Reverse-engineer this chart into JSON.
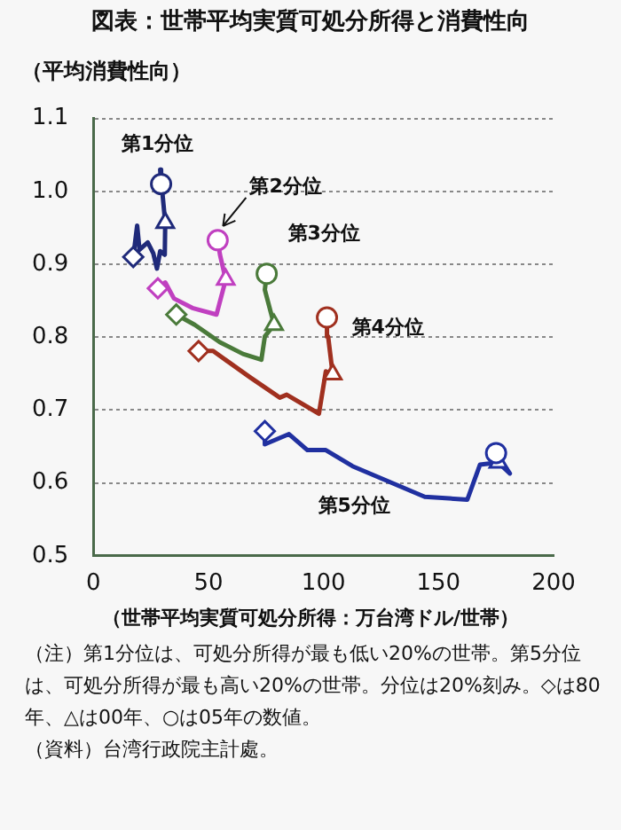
{
  "chart_data": {
    "type": "line",
    "title": "図表：世帯平均実質可処分所得と消費性向",
    "ylabel": "（平均消費性向）",
    "xlabel": "（世帯平均実質可処分所得：万台湾ドル/世帯）",
    "xlim": [
      0,
      200
    ],
    "xticks": [
      0,
      50,
      100,
      150,
      200
    ],
    "ylim": [
      0.5,
      1.1
    ],
    "yticks": [
      0.5,
      0.6,
      0.7,
      0.8,
      0.9,
      {
        "value": 1,
        "label": "1.0"
      },
      1.1
    ],
    "grid": "y",
    "legend": false,
    "line_style": "solid",
    "series": [
      {
        "name": "第1分位",
        "color": "#1f2a7a",
        "x": [
          17.3,
          19,
          20,
          23.6,
          26,
          27.6,
          29,
          31,
          31.2,
          29,
          29.4
        ],
        "values": [
          0.91,
          0.953,
          0.92,
          0.93,
          0.915,
          0.894,
          0.918,
          0.913,
          0.957,
          1.03,
          1.01
        ],
        "marker": [
          "diamond",
          null,
          null,
          null,
          null,
          null,
          null,
          null,
          "triangle",
          null,
          "circle"
        ]
      },
      {
        "name": "第2分位",
        "color": "#c040c0",
        "x": [
          28,
          31.2,
          35,
          43,
          53.5,
          55,
          57.5,
          55,
          54
        ],
        "values": [
          0.867,
          0.875,
          0.853,
          0.84,
          0.831,
          0.849,
          0.879,
          0.913,
          0.933
        ],
        "marker": [
          "diamond",
          null,
          null,
          null,
          null,
          null,
          "triangle",
          null,
          "circle"
        ]
      },
      {
        "name": "第3分位",
        "color": "#4a7a3a",
        "x": [
          36,
          44,
          55,
          65,
          73,
          74.5,
          78.5,
          74.5,
          75.3
        ],
        "values": [
          0.831,
          0.817,
          0.793,
          0.777,
          0.769,
          0.801,
          0.817,
          0.865,
          0.887
        ],
        "marker": [
          "diamond",
          null,
          null,
          null,
          null,
          null,
          "triangle",
          null,
          "circle"
        ]
      },
      {
        "name": "第4分位",
        "color": "#a0301f",
        "x": [
          45.7,
          52,
          68,
          81,
          84,
          98,
          101,
          104,
          102,
          101.5
        ],
        "values": [
          0.781,
          0.781,
          0.745,
          0.717,
          0.721,
          0.695,
          0.753,
          0.749,
          0.801,
          0.827
        ],
        "marker": [
          "diamond",
          null,
          null,
          null,
          null,
          null,
          null,
          "triangle",
          null,
          "circle"
        ]
      },
      {
        "name": "第5分位",
        "color": "#2030a0",
        "x": [
          74.5,
          74.5,
          85,
          93,
          101,
          112.6,
          144,
          162.5,
          168,
          176,
          181,
          175
        ],
        "values": [
          0.671,
          0.653,
          0.667,
          0.645,
          0.645,
          0.623,
          0.581,
          0.577,
          0.625,
          0.628,
          0.613,
          0.641
        ],
        "marker": [
          "diamond",
          null,
          null,
          null,
          null,
          null,
          null,
          null,
          null,
          "triangle",
          null,
          "circle"
        ]
      }
    ],
    "annotations": [
      "（注）第1分位は、可処分所得が最も低い20%の世帯。第5分位は、可処分所得が最も高い20%の世帯。分位は20%刻み。◇は80年、△は00年、○は05年の数値。",
      "（資料）台湾行政院主計處。"
    ]
  }
}
